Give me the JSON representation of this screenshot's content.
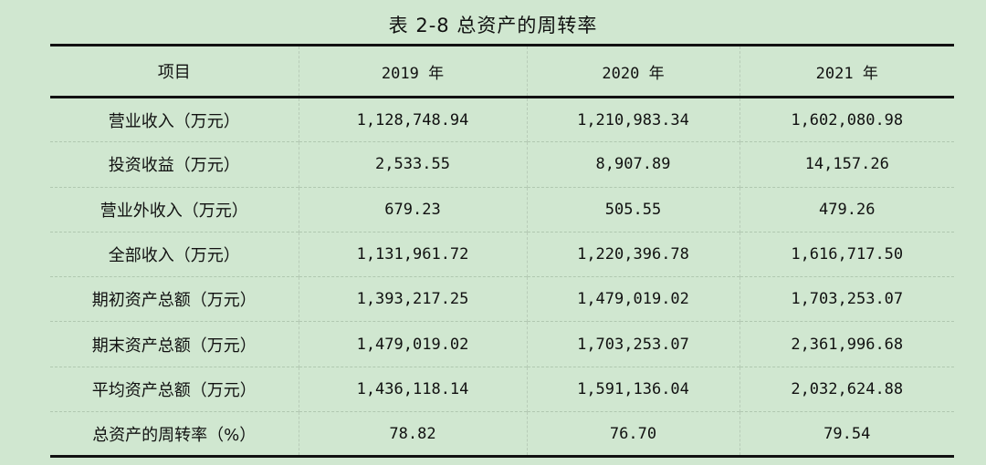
{
  "title": "表 2-8 总资产的周转率",
  "table": {
    "headers": [
      "项目",
      "2019 年",
      "2020 年",
      "2021 年"
    ],
    "rows": [
      [
        "营业收入（万元）",
        "1,128,748.94",
        "1,210,983.34",
        "1,602,080.98"
      ],
      [
        "投资收益（万元）",
        "2,533.55",
        "8,907.89",
        "14,157.26"
      ],
      [
        "营业外收入（万元）",
        "679.23",
        "505.55",
        "479.26"
      ],
      [
        "全部收入（万元）",
        "1,131,961.72",
        "1,220,396.78",
        "1,616,717.50"
      ],
      [
        "期初资产总额（万元）",
        "1,393,217.25",
        "1,479,019.02",
        "1,703,253.07"
      ],
      [
        "期末资产总额（万元）",
        "1,479,019.02",
        "1,703,253.07",
        "2,361,996.68"
      ],
      [
        "平均资产总额（万元）",
        "1,436,118.14",
        "1,591,136.04",
        "2,032,624.88"
      ],
      [
        "总资产的周转率（%）",
        "78.82",
        "76.70",
        "79.54"
      ]
    ]
  }
}
